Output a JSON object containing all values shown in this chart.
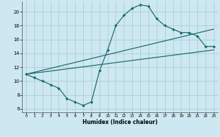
{
  "title": "",
  "xlabel": "Humidex (Indice chaleur)",
  "bg_color": "#cde8f0",
  "grid_color": "#a8ccda",
  "line_color": "#1a6b6b",
  "xlim": [
    -0.5,
    23.5
  ],
  "ylim": [
    5.5,
    21.5
  ],
  "xticks": [
    0,
    1,
    2,
    3,
    4,
    5,
    6,
    7,
    8,
    9,
    10,
    11,
    12,
    13,
    14,
    15,
    16,
    17,
    18,
    19,
    20,
    21,
    22,
    23
  ],
  "yticks": [
    6,
    8,
    10,
    12,
    14,
    16,
    18,
    20
  ],
  "curve_x": [
    0,
    1,
    2,
    3,
    4,
    5,
    6,
    7,
    8,
    9,
    10,
    11,
    12,
    13,
    14,
    15,
    16,
    17,
    18,
    19,
    20,
    21,
    22,
    23
  ],
  "curve_y": [
    11.0,
    10.5,
    10.0,
    9.5,
    9.0,
    7.5,
    7.0,
    6.5,
    7.0,
    11.5,
    14.5,
    18.0,
    19.5,
    20.5,
    21.0,
    20.8,
    19.0,
    18.0,
    17.5,
    17.0,
    17.0,
    16.5,
    15.0,
    15.0
  ],
  "line1_x": [
    0,
    23
  ],
  "line1_y": [
    11.0,
    14.5
  ],
  "line2_x": [
    0,
    23
  ],
  "line2_y": [
    11.0,
    17.5
  ],
  "marker_x": [
    0,
    1,
    2,
    3,
    4,
    5,
    6,
    7,
    8,
    9,
    10,
    11,
    12,
    13,
    14,
    15,
    16,
    17,
    18,
    19,
    20,
    21,
    22,
    23
  ],
  "marker_y": [
    11.0,
    10.5,
    10.0,
    9.5,
    9.0,
    7.5,
    7.0,
    6.5,
    7.0,
    11.5,
    14.5,
    18.0,
    19.5,
    20.5,
    21.0,
    20.8,
    19.0,
    18.0,
    17.5,
    17.0,
    17.0,
    16.5,
    15.0,
    15.0
  ]
}
